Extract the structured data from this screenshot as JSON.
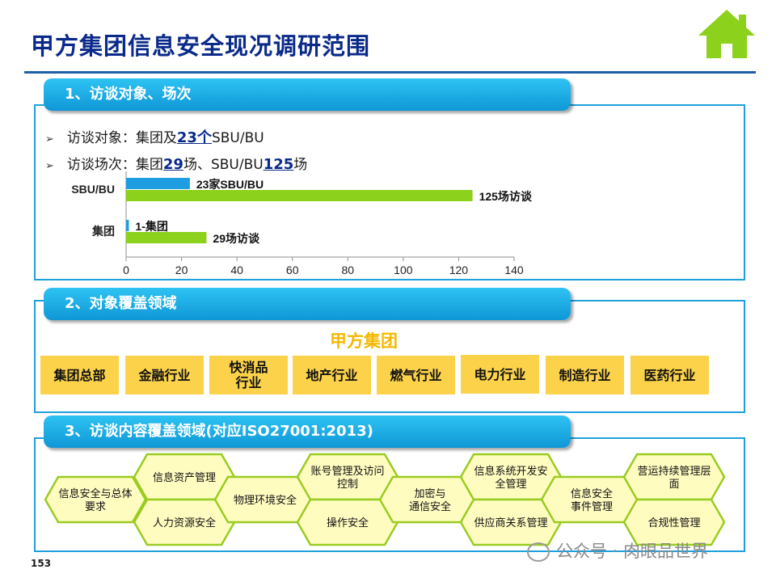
{
  "page": {
    "title": "甲方集团信息安全现况调研范围",
    "page_number": "153",
    "watermark": "公众号 · 肉眼品世界",
    "home_icon": "home-icon"
  },
  "section1": {
    "label": "1、访谈对象、场次",
    "bullets": [
      {
        "prefix": "访谈对象：集团及",
        "num1": "23个",
        "mid": "SBU/BU",
        "num2": "",
        "suffix": ""
      },
      {
        "prefix": "访谈场次：集团",
        "num1": "29",
        "mid": "场、SBU/BU",
        "num2": "125",
        "suffix": "场"
      }
    ]
  },
  "chart_data": {
    "type": "bar",
    "orientation": "horizontal",
    "categories": [
      "SBU/BU",
      "集团"
    ],
    "series": [
      {
        "values": [
          23,
          1
        ],
        "color": "#1e9ee0",
        "labels": [
          "23家SBU/BU",
          "1-集团"
        ]
      },
      {
        "values": [
          125,
          29
        ],
        "color": "#8cd11c",
        "labels": [
          "125场访谈",
          "29场访谈"
        ]
      }
    ],
    "xlim": [
      0,
      140
    ],
    "xticks": [
      0,
      20,
      40,
      60,
      80,
      100,
      120,
      140
    ],
    "grid": false,
    "legend": "none"
  },
  "section2": {
    "label": "2、对象覆盖领域",
    "group_title": "甲方集团",
    "industries": [
      "集团总部",
      "金融行业",
      "快消品\n行业",
      "地产行业",
      "燃气行业",
      "电力行业",
      "制造行业",
      "医药行业"
    ],
    "industry_color": "#fbd24a"
  },
  "section3": {
    "label": "3、访谈内容覆盖领域(对应ISO27001:2013)",
    "hexes": [
      "信息安全与总体\n要求",
      "信息资产管理",
      "人力资源安全",
      "物理环境安全",
      "账号管理及访问\n控制",
      "操作安全",
      "加密与\n通信安全",
      "信息系统开发安\n全管理",
      "供应商关系管理",
      "信息安全\n事件管理",
      "营运持续管理层\n面",
      "合规性管理"
    ],
    "hex_fill": "#fffcc0",
    "hex_stroke": "#99cc22"
  }
}
